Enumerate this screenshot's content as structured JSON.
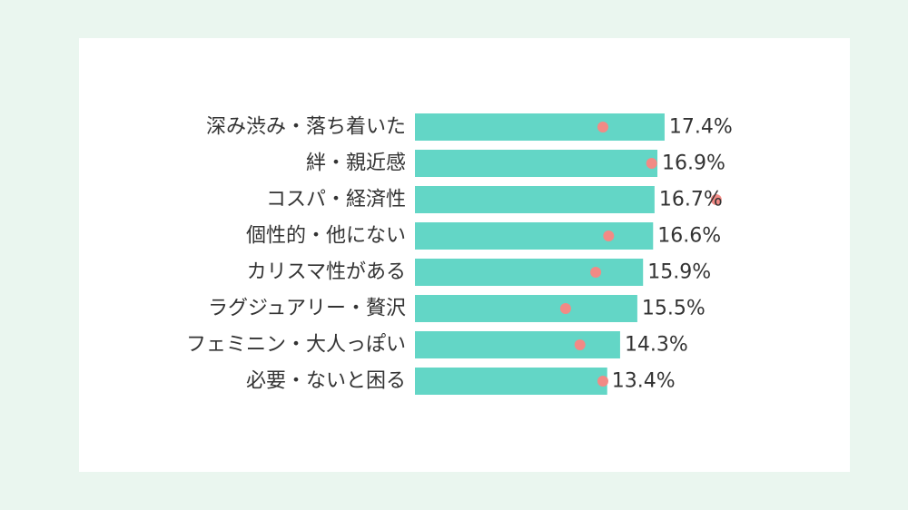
{
  "chart_data": {
    "type": "bar",
    "orientation": "horizontal",
    "categories": [
      "深み渋み・落ち着いた",
      "絆・親近感",
      "コスパ・経済性",
      "個性的・他にない",
      "カリスマ性がある",
      "ラグジュアリー・贅沢",
      "フェミニン・大人っぽい",
      "必要・ないと困る"
    ],
    "series": [
      {
        "type": "bar",
        "values": [
          17.4,
          16.9,
          16.7,
          16.6,
          15.9,
          15.5,
          14.3,
          13.4
        ],
        "value_labels": [
          "17.4%",
          "16.9%",
          "16.7%",
          "16.6%",
          "15.9%",
          "15.5%",
          "14.3%",
          "13.4%"
        ],
        "color": "#63d6c6"
      },
      {
        "type": "scatter",
        "values": [
          13.1,
          16.5,
          21.0,
          13.5,
          12.6,
          10.5,
          11.5,
          13.1
        ],
        "color": "#f28a85"
      }
    ],
    "xlim": [
      0,
      20
    ],
    "grid": false,
    "legend": "none"
  },
  "colors": {
    "page_background": "#eaf6ef",
    "card_background": "#ffffff",
    "bar": "#63d6c6",
    "marker": "#f28a85",
    "text": "#333333"
  }
}
